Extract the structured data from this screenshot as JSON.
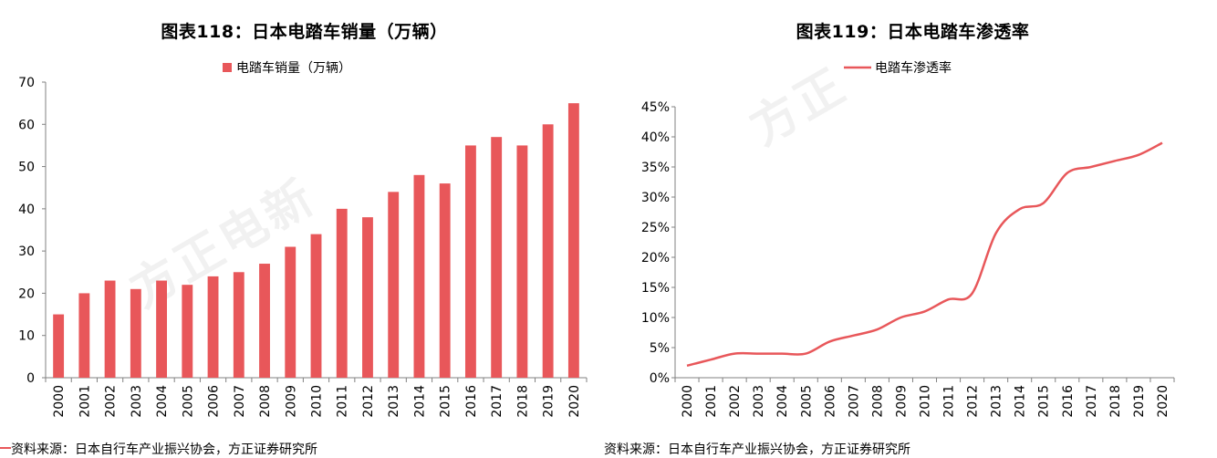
{
  "left": {
    "title": "图表118：日本电踏车销量（万辆）",
    "source": "资料来源：日本自行车产业振兴协会，方正证券研究所"
  },
  "right": {
    "title": "图表119：日本电踏车渗透率",
    "source": "资料来源：日本自行车产业振兴协会，方正证券研究所"
  },
  "watermark": {
    "left": "方正电新",
    "right": "方正"
  },
  "colors": {
    "series": "#e8575a",
    "axis": "#808080",
    "text": "#000000"
  },
  "chart_data": [
    {
      "type": "bar",
      "title": "图表118：日本电踏车销量（万辆）",
      "legend": "top-center",
      "grid": false,
      "categories": [
        "2000",
        "2001",
        "2002",
        "2003",
        "2004",
        "2005",
        "2006",
        "2007",
        "2008",
        "2009",
        "2010",
        "2011",
        "2012",
        "2013",
        "2014",
        "2015",
        "2016",
        "2017",
        "2018",
        "2019",
        "2020"
      ],
      "series": [
        {
          "name": "电踏车销量（万辆）",
          "values": [
            15,
            20,
            23,
            21,
            23,
            22,
            24,
            25,
            27,
            31,
            34,
            40,
            38,
            44,
            48,
            46,
            55,
            57,
            55,
            60,
            65
          ]
        }
      ],
      "ylim": [
        0,
        70
      ],
      "yticks": [
        0,
        10,
        20,
        30,
        40,
        50,
        60,
        70
      ],
      "ytick_labels": [
        "0",
        "10",
        "20",
        "30",
        "40",
        "50",
        "60",
        "70"
      ]
    },
    {
      "type": "line",
      "title": "图表119：日本电踏车渗透率",
      "legend": "top-center",
      "grid": false,
      "categories": [
        "2000",
        "2001",
        "2002",
        "2003",
        "2004",
        "2005",
        "2006",
        "2007",
        "2008",
        "2009",
        "2010",
        "2011",
        "2012",
        "2013",
        "2014",
        "2015",
        "2016",
        "2017",
        "2018",
        "2019",
        "2020"
      ],
      "series": [
        {
          "name": "电踏车渗透率",
          "values": [
            2,
            3,
            4,
            4,
            4,
            4,
            6,
            7,
            8,
            10,
            11,
            13,
            14,
            24,
            28,
            29,
            34,
            35,
            36,
            37,
            39
          ]
        }
      ],
      "ylim": [
        0,
        45
      ],
      "yticks": [
        0,
        5,
        10,
        15,
        20,
        25,
        30,
        35,
        40,
        45
      ],
      "ytick_labels": [
        "0%",
        "5%",
        "10%",
        "15%",
        "20%",
        "25%",
        "30%",
        "35%",
        "40%",
        "45%"
      ]
    }
  ]
}
